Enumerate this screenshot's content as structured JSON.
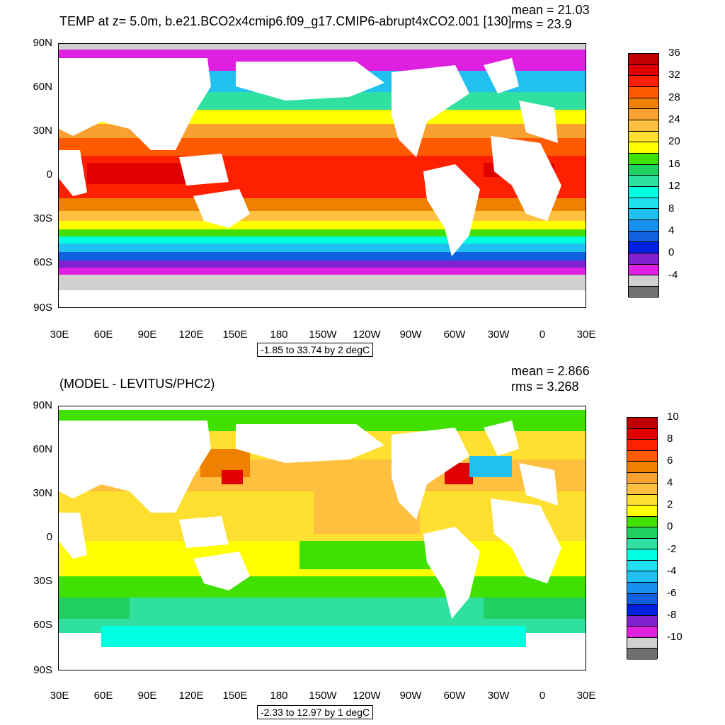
{
  "top": {
    "title": "TEMP at z=   5.0m, b.e21.BCO2x4cmip6.f09_g17.CMIP6-abrupt4xCO2.001 [130]",
    "mean": "mean = 21.03",
    "rms": "rms = 23.9",
    "range_text": "-1.85 to 33.74 by 2 degC",
    "lat_labels": [
      "90N",
      "60N",
      "30N",
      "0",
      "30S",
      "60S",
      "90S"
    ],
    "lon_labels": [
      "30E",
      "60E",
      "90E",
      "120E",
      "150E",
      "180",
      "150W",
      "120W",
      "90W",
      "60W",
      "30W",
      "0",
      "30E"
    ],
    "colorbar": {
      "labels": [
        "36",
        "32",
        "28",
        "24",
        "20",
        "16",
        "12",
        "8",
        "4",
        "0",
        "-4"
      ],
      "colors": [
        "#c00000",
        "#e00000",
        "#ff2000",
        "#ff5a00",
        "#f08000",
        "#f8a030",
        "#ffc040",
        "#ffe030",
        "#ffff00",
        "#40e000",
        "#20d060",
        "#30e0a0",
        "#00ffe0",
        "#20e0f0",
        "#20c0f0",
        "#1890f0",
        "#1060e0",
        "#0020e0",
        "#8020d0",
        "#e020e0",
        "#d0d0d0",
        "#707070"
      ]
    }
  },
  "bottom": {
    "title": "(MODEL - LEVITUS/PHC2)",
    "mean": "mean = 2.866",
    "rms": "rms = 3.268",
    "range_text": "-2.33 to 12.97 by 1 degC",
    "lat_labels": [
      "90N",
      "60N",
      "30N",
      "0",
      "30S",
      "60S",
      "90S"
    ],
    "lon_labels": [
      "30E",
      "60E",
      "90E",
      "120E",
      "150E",
      "180",
      "150W",
      "120W",
      "90W",
      "60W",
      "30W",
      "0",
      "30E"
    ],
    "colorbar": {
      "labels": [
        "10",
        "8",
        "6",
        "4",
        "2",
        "0",
        "-2",
        "-4",
        "-6",
        "-8",
        "-10"
      ],
      "colors": [
        "#c00000",
        "#e00000",
        "#ff2000",
        "#ff5a00",
        "#f08000",
        "#f8a030",
        "#ffc040",
        "#ffe030",
        "#ffff00",
        "#40e000",
        "#20d060",
        "#30e0a0",
        "#00ffe0",
        "#20e0f0",
        "#20c0f0",
        "#1890f0",
        "#1060e0",
        "#0020e0",
        "#8020d0",
        "#e020e0",
        "#d0d0d0",
        "#707070"
      ]
    }
  }
}
